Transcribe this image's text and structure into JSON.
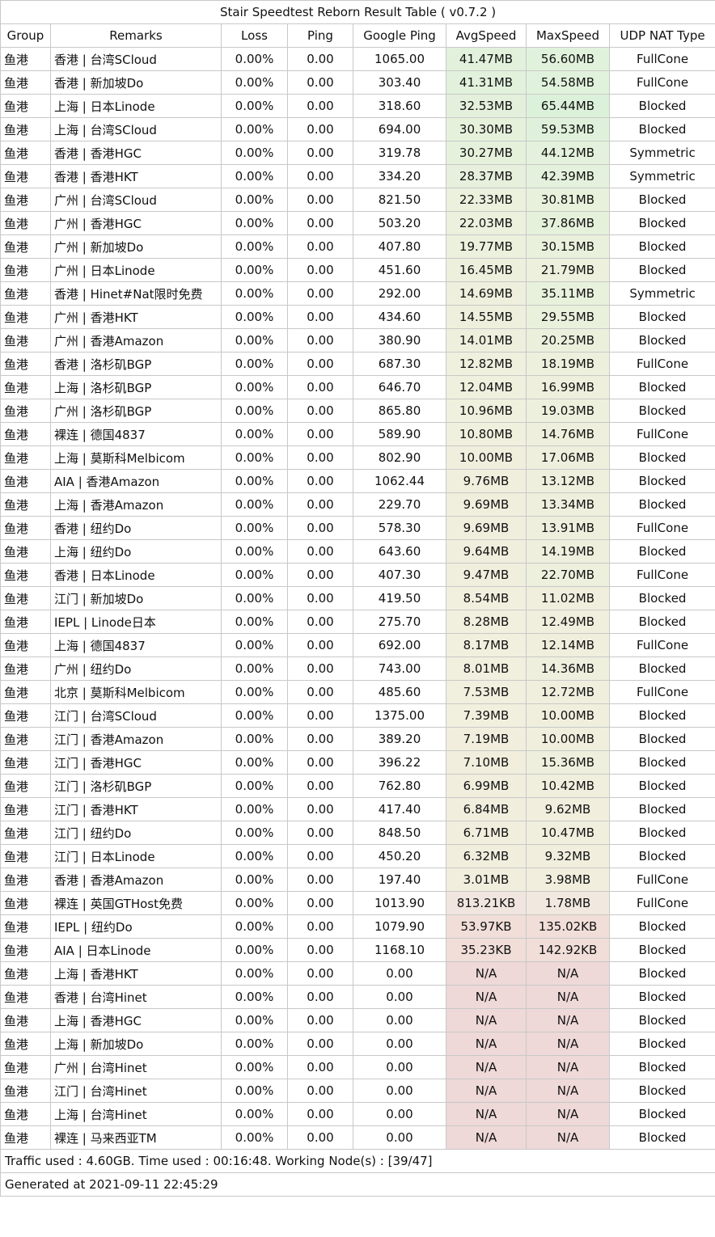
{
  "title": "Stair Speedtest Reborn Result Table ( v0.7.2 )",
  "headers": [
    "Group",
    "Remarks",
    "Loss",
    "Ping",
    "Google Ping",
    "AvgSpeed",
    "MaxSpeed",
    "UDP NAT Type"
  ],
  "rows": [
    [
      "鱼港",
      "香港 | 台湾SCloud",
      "0.00%",
      "0.00",
      "1065.00",
      "41.47MB",
      "56.60MB",
      "FullCone"
    ],
    [
      "鱼港",
      "香港 | 新加坡Do",
      "0.00%",
      "0.00",
      "303.40",
      "41.31MB",
      "54.58MB",
      "FullCone"
    ],
    [
      "鱼港",
      "上海 | 日本Linode",
      "0.00%",
      "0.00",
      "318.60",
      "32.53MB",
      "65.44MB",
      "Blocked"
    ],
    [
      "鱼港",
      "上海 | 台湾SCloud",
      "0.00%",
      "0.00",
      "694.00",
      "30.30MB",
      "59.53MB",
      "Blocked"
    ],
    [
      "鱼港",
      "香港 | 香港HGC",
      "0.00%",
      "0.00",
      "319.78",
      "30.27MB",
      "44.12MB",
      "Symmetric"
    ],
    [
      "鱼港",
      "香港 | 香港HKT",
      "0.00%",
      "0.00",
      "334.20",
      "28.37MB",
      "42.39MB",
      "Symmetric"
    ],
    [
      "鱼港",
      "广州 | 台湾SCloud",
      "0.00%",
      "0.00",
      "821.50",
      "22.33MB",
      "30.81MB",
      "Blocked"
    ],
    [
      "鱼港",
      "广州 | 香港HGC",
      "0.00%",
      "0.00",
      "503.20",
      "22.03MB",
      "37.86MB",
      "Blocked"
    ],
    [
      "鱼港",
      "广州 | 新加坡Do",
      "0.00%",
      "0.00",
      "407.80",
      "19.77MB",
      "30.15MB",
      "Blocked"
    ],
    [
      "鱼港",
      "广州 | 日本Linode",
      "0.00%",
      "0.00",
      "451.60",
      "16.45MB",
      "21.79MB",
      "Blocked"
    ],
    [
      "鱼港",
      "香港 | Hinet#Nat限时免费",
      "0.00%",
      "0.00",
      "292.00",
      "14.69MB",
      "35.11MB",
      "Symmetric"
    ],
    [
      "鱼港",
      "广州 | 香港HKT",
      "0.00%",
      "0.00",
      "434.60",
      "14.55MB",
      "29.55MB",
      "Blocked"
    ],
    [
      "鱼港",
      "广州 | 香港Amazon",
      "0.00%",
      "0.00",
      "380.90",
      "14.01MB",
      "20.25MB",
      "Blocked"
    ],
    [
      "鱼港",
      "香港 | 洛杉矶BGP",
      "0.00%",
      "0.00",
      "687.30",
      "12.82MB",
      "18.19MB",
      "FullCone"
    ],
    [
      "鱼港",
      "上海 | 洛杉矶BGP",
      "0.00%",
      "0.00",
      "646.70",
      "12.04MB",
      "16.99MB",
      "Blocked"
    ],
    [
      "鱼港",
      "广州 | 洛杉矶BGP",
      "0.00%",
      "0.00",
      "865.80",
      "10.96MB",
      "19.03MB",
      "Blocked"
    ],
    [
      "鱼港",
      "裸连 | 德国4837",
      "0.00%",
      "0.00",
      "589.90",
      "10.80MB",
      "14.76MB",
      "FullCone"
    ],
    [
      "鱼港",
      "上海 | 莫斯科Melbicom",
      "0.00%",
      "0.00",
      "802.90",
      "10.00MB",
      "17.06MB",
      "Blocked"
    ],
    [
      "鱼港",
      "AIA | 香港Amazon",
      "0.00%",
      "0.00",
      "1062.44",
      "9.76MB",
      "13.12MB",
      "Blocked"
    ],
    [
      "鱼港",
      "上海 | 香港Amazon",
      "0.00%",
      "0.00",
      "229.70",
      "9.69MB",
      "13.34MB",
      "Blocked"
    ],
    [
      "鱼港",
      "香港 | 纽约Do",
      "0.00%",
      "0.00",
      "578.30",
      "9.69MB",
      "13.91MB",
      "FullCone"
    ],
    [
      "鱼港",
      "上海 | 纽约Do",
      "0.00%",
      "0.00",
      "643.60",
      "9.64MB",
      "14.19MB",
      "Blocked"
    ],
    [
      "鱼港",
      "香港 | 日本Linode",
      "0.00%",
      "0.00",
      "407.30",
      "9.47MB",
      "22.70MB",
      "FullCone"
    ],
    [
      "鱼港",
      "江门 | 新加坡Do",
      "0.00%",
      "0.00",
      "419.50",
      "8.54MB",
      "11.02MB",
      "Blocked"
    ],
    [
      "鱼港",
      "IEPL | Linode日本",
      "0.00%",
      "0.00",
      "275.70",
      "8.28MB",
      "12.49MB",
      "Blocked"
    ],
    [
      "鱼港",
      "上海 | 德国4837",
      "0.00%",
      "0.00",
      "692.00",
      "8.17MB",
      "12.14MB",
      "FullCone"
    ],
    [
      "鱼港",
      "广州 | 纽约Do",
      "0.00%",
      "0.00",
      "743.00",
      "8.01MB",
      "14.36MB",
      "Blocked"
    ],
    [
      "鱼港",
      "北京 | 莫斯科Melbicom",
      "0.00%",
      "0.00",
      "485.60",
      "7.53MB",
      "12.72MB",
      "FullCone"
    ],
    [
      "鱼港",
      "江门 | 台湾SCloud",
      "0.00%",
      "0.00",
      "1375.00",
      "7.39MB",
      "10.00MB",
      "Blocked"
    ],
    [
      "鱼港",
      "江门 | 香港Amazon",
      "0.00%",
      "0.00",
      "389.20",
      "7.19MB",
      "10.00MB",
      "Blocked"
    ],
    [
      "鱼港",
      "江门 | 香港HGC",
      "0.00%",
      "0.00",
      "396.22",
      "7.10MB",
      "15.36MB",
      "Blocked"
    ],
    [
      "鱼港",
      "江门 | 洛杉矶BGP",
      "0.00%",
      "0.00",
      "762.80",
      "6.99MB",
      "10.42MB",
      "Blocked"
    ],
    [
      "鱼港",
      "江门 | 香港HKT",
      "0.00%",
      "0.00",
      "417.40",
      "6.84MB",
      "9.62MB",
      "Blocked"
    ],
    [
      "鱼港",
      "江门 | 纽约Do",
      "0.00%",
      "0.00",
      "848.50",
      "6.71MB",
      "10.47MB",
      "Blocked"
    ],
    [
      "鱼港",
      "江门 | 日本Linode",
      "0.00%",
      "0.00",
      "450.20",
      "6.32MB",
      "9.32MB",
      "Blocked"
    ],
    [
      "鱼港",
      "香港 | 香港Amazon",
      "0.00%",
      "0.00",
      "197.40",
      "3.01MB",
      "3.98MB",
      "FullCone"
    ],
    [
      "鱼港",
      "裸连 | 英国GTHost免费",
      "0.00%",
      "0.00",
      "1013.90",
      "813.21KB",
      "1.78MB",
      "FullCone"
    ],
    [
      "鱼港",
      "IEPL | 纽约Do",
      "0.00%",
      "0.00",
      "1079.90",
      "53.97KB",
      "135.02KB",
      "Blocked"
    ],
    [
      "鱼港",
      "AIA | 日本Linode",
      "0.00%",
      "0.00",
      "1168.10",
      "35.23KB",
      "142.92KB",
      "Blocked"
    ],
    [
      "鱼港",
      "上海 | 香港HKT",
      "0.00%",
      "0.00",
      "0.00",
      "N/A",
      "N/A",
      "Blocked"
    ],
    [
      "鱼港",
      "香港 | 台湾Hinet",
      "0.00%",
      "0.00",
      "0.00",
      "N/A",
      "N/A",
      "Blocked"
    ],
    [
      "鱼港",
      "上海 | 香港HGC",
      "0.00%",
      "0.00",
      "0.00",
      "N/A",
      "N/A",
      "Blocked"
    ],
    [
      "鱼港",
      "上海 | 新加坡Do",
      "0.00%",
      "0.00",
      "0.00",
      "N/A",
      "N/A",
      "Blocked"
    ],
    [
      "鱼港",
      "广州 | 台湾Hinet",
      "0.00%",
      "0.00",
      "0.00",
      "N/A",
      "N/A",
      "Blocked"
    ],
    [
      "鱼港",
      "江门 | 台湾Hinet",
      "0.00%",
      "0.00",
      "0.00",
      "N/A",
      "N/A",
      "Blocked"
    ],
    [
      "鱼港",
      "上海 | 台湾Hinet",
      "0.00%",
      "0.00",
      "0.00",
      "N/A",
      "N/A",
      "Blocked"
    ],
    [
      "鱼港",
      "裸连 | 马来西亚TM",
      "0.00%",
      "0.00",
      "0.00",
      "N/A",
      "N/A",
      "Blocked"
    ]
  ],
  "avg_colors": [
    "#e1f1dc",
    "#e1f1dc",
    "#e5f0dc",
    "#e6f1dc",
    "#e6f1dc",
    "#e7f0dc",
    "#ebf1dd",
    "#ebf1dd",
    "#ecf1dd",
    "#edf0dd",
    "#eef0dd",
    "#eef0dd",
    "#eef0dd",
    "#eff0de",
    "#eff0de",
    "#f0f0de",
    "#f0f0de",
    "#f0efde",
    "#f0efde",
    "#f0efde",
    "#f0efde",
    "#f0efde",
    "#f0efde",
    "#f1efde",
    "#f1efde",
    "#f1efde",
    "#f1efde",
    "#f1efde",
    "#f1efde",
    "#f1eede",
    "#f1eede",
    "#f1eede",
    "#f1eede",
    "#f2eede",
    "#f2eede",
    "#f2eede",
    "#f1e6df",
    "#f1ded9",
    "#f1ded9",
    "#efd8d8",
    "#efd8d8",
    "#efd8d8",
    "#efd8d8",
    "#efd8d8",
    "#efd8d8",
    "#efd8d8",
    "#efd8d8"
  ],
  "max_colors": [
    "#e1f2dc",
    "#e1f2dc",
    "#dcf1da",
    "#dff1db",
    "#e4f1dc",
    "#e4f1dc",
    "#e8f1dc",
    "#e6f1dc",
    "#e9f1dd",
    "#ecf0dd",
    "#e8f1dc",
    "#e9f1dd",
    "#ebf0dd",
    "#edf0dd",
    "#eef0dd",
    "#edf0dd",
    "#eef0dd",
    "#eef0dd",
    "#efefde",
    "#efefde",
    "#efefde",
    "#efefde",
    "#ecf0dd",
    "#f0efde",
    "#f0efde",
    "#f0efde",
    "#efefde",
    "#f0efde",
    "#f0efde",
    "#f0efde",
    "#eef0dd",
    "#f0efde",
    "#f1eede",
    "#f0efde",
    "#f1eede",
    "#f1eede",
    "#f1e8df",
    "#f1ded9",
    "#f1ded9",
    "#efd8d8",
    "#efd8d8",
    "#efd8d8",
    "#efd8d8",
    "#efd8d8",
    "#efd8d8",
    "#efd8d8",
    "#efd8d8"
  ],
  "footer": {
    "traffic": "Traffic used : 4.60GB. Time used : 00:16:48. Working Node(s) : [39/47]",
    "generated": "Generated at 2021-09-11 22:45:29"
  }
}
